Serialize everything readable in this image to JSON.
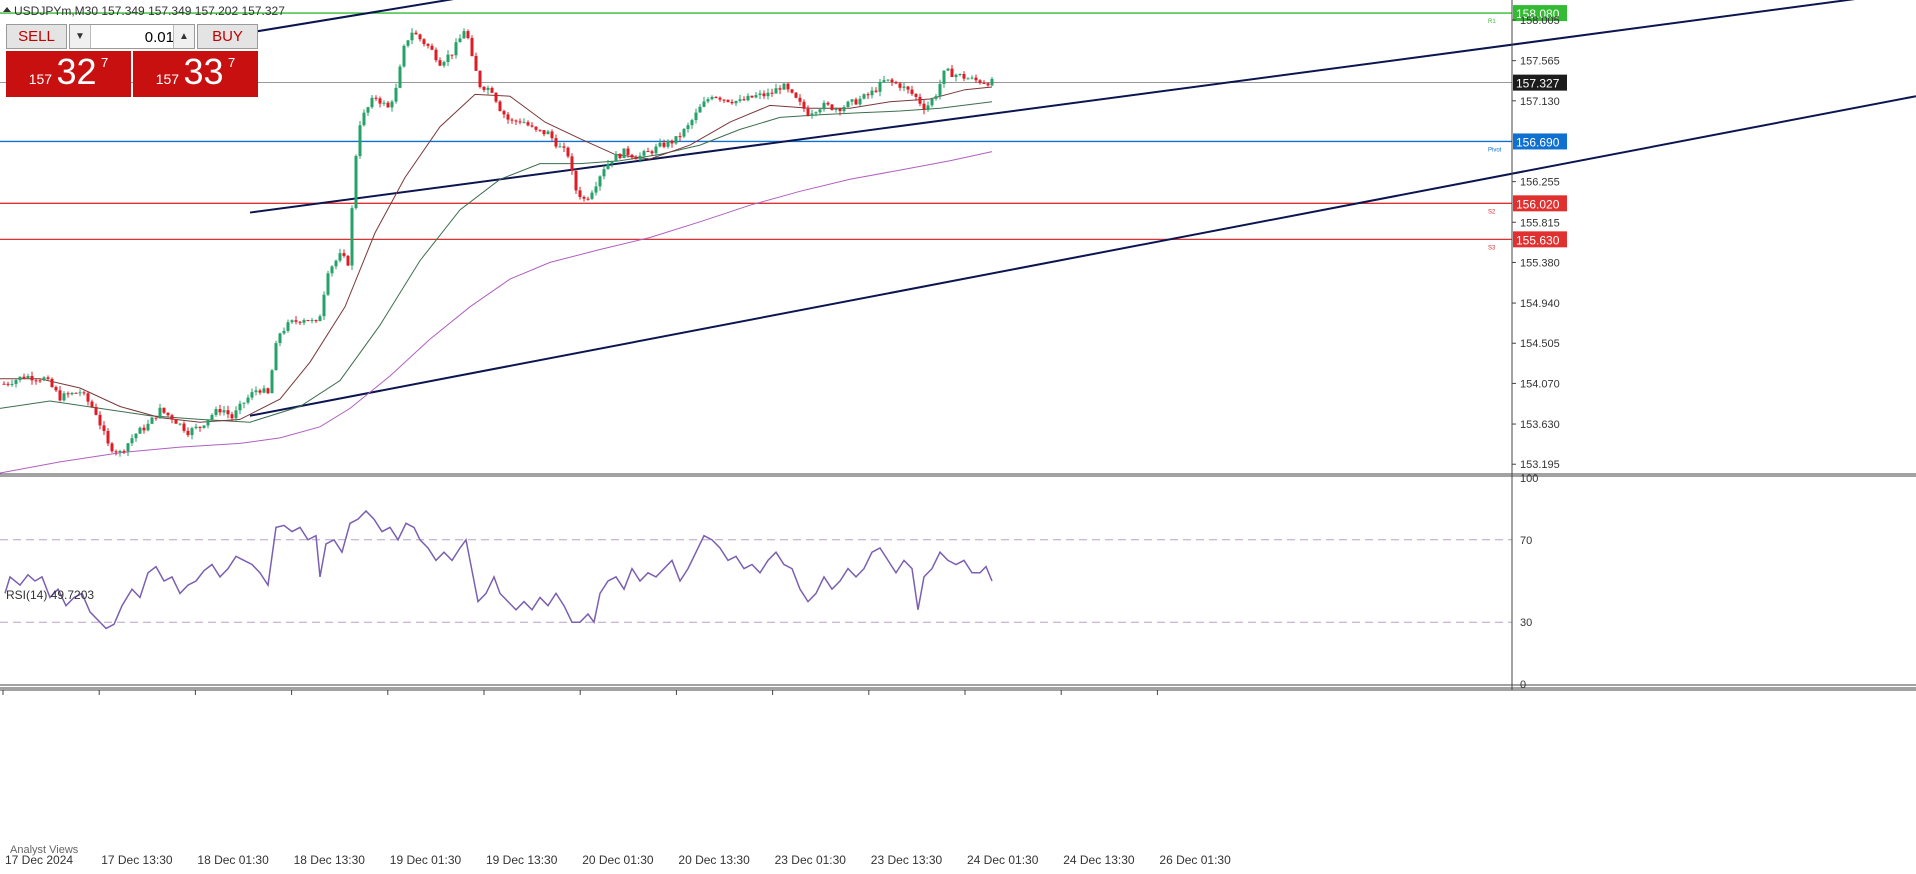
{
  "header": {
    "title": "USDJPYm,M30  157.349 157.349 157.202 157.327",
    "indicator_label": "RSI(14) 49.7203",
    "bottom_tab": "Analyst Views"
  },
  "trade_panel": {
    "sell_label": "SELL",
    "buy_label": "BUY",
    "volume": "0.01",
    "sell_price_prefix": "157",
    "sell_price_main": "32",
    "sell_price_sup": "7",
    "buy_price_prefix": "157",
    "buy_price_main": "33",
    "buy_price_sup": "7"
  },
  "colors": {
    "bull": "#26a269",
    "bear": "#e01b24",
    "resistance": "#33bb33",
    "support": "#e03030",
    "pivot": "#1070d0",
    "channel": "#0b1550",
    "rsi": "#7b5fb0",
    "ma_fast": "#7a3838",
    "ma_mid": "#3c6e4e",
    "ma_slow": "#b060c0"
  },
  "chart_data": [
    {
      "type": "candlestick",
      "symbol": "USDJPYm",
      "timeframe": "M30",
      "ylim": [
        153.1,
        158.2
      ],
      "price_ticks": [
        "158.005",
        "157.565",
        "157.130",
        "156.255",
        "155.815",
        "155.380",
        "154.940",
        "154.505",
        "154.070",
        "153.630",
        "153.195"
      ],
      "time_labels": [
        "17 Dec 2024",
        "17 Dec 13:30",
        "18 Dec 01:30",
        "18 Dec 13:30",
        "19 Dec 01:30",
        "19 Dec 13:30",
        "20 Dec 01:30",
        "20 Dec 13:30",
        "23 Dec 01:30",
        "23 Dec 13:30",
        "24 Dec 01:30",
        "24 Dec 13:30",
        "26 Dec 01:30"
      ],
      "current_price": "157.327",
      "levels": [
        {
          "name": "R1",
          "label": "R1",
          "value": "158.080",
          "role": "resistance"
        },
        {
          "name": "Pivot",
          "label": "Pivot",
          "value": "156.690",
          "role": "pivot"
        },
        {
          "name": "S2",
          "label": "S2",
          "value": "156.020",
          "role": "support"
        },
        {
          "name": "S3",
          "label": "S3",
          "value": "155.630",
          "role": "support"
        }
      ],
      "trend_channel": {
        "lower": [
          [
            250,
            153.72
          ],
          [
            1916,
            157.18
          ]
        ],
        "upper_mid": [
          [
            250,
            155.92
          ],
          [
            1916,
            158.32
          ]
        ],
        "upper_top": [
          [
            250,
            157.87
          ],
          [
            520,
            158.35
          ]
        ]
      },
      "close_path": [
        [
          0,
          154.05
        ],
        [
          25,
          154.15
        ],
        [
          45,
          154.12
        ],
        [
          60,
          153.92
        ],
        [
          80,
          153.98
        ],
        [
          95,
          153.78
        ],
        [
          108,
          153.4
        ],
        [
          120,
          153.32
        ],
        [
          135,
          153.52
        ],
        [
          148,
          153.62
        ],
        [
          160,
          153.78
        ],
        [
          172,
          153.7
        ],
        [
          188,
          153.55
        ],
        [
          200,
          153.6
        ],
        [
          210,
          153.72
        ],
        [
          222,
          153.8
        ],
        [
          232,
          153.7
        ],
        [
          245,
          153.88
        ],
        [
          258,
          154.02
        ],
        [
          268,
          153.95
        ],
        [
          278,
          154.6
        ],
        [
          290,
          154.72
        ],
        [
          305,
          154.78
        ],
        [
          318,
          154.7
        ],
        [
          328,
          155.3
        ],
        [
          340,
          155.45
        ],
        [
          348,
          155.38
        ],
        [
          352,
          155.95
        ],
        [
          358,
          156.85
        ],
        [
          365,
          157.0
        ],
        [
          375,
          157.18
        ],
        [
          388,
          157.05
        ],
        [
          396,
          157.25
        ],
        [
          405,
          157.75
        ],
        [
          412,
          157.88
        ],
        [
          420,
          157.8
        ],
        [
          430,
          157.7
        ],
        [
          440,
          157.55
        ],
        [
          452,
          157.65
        ],
        [
          460,
          157.8
        ],
        [
          466,
          157.95
        ],
        [
          470,
          157.65
        ],
        [
          480,
          157.3
        ],
        [
          492,
          157.25
        ],
        [
          500,
          157.05
        ],
        [
          510,
          156.9
        ],
        [
          522,
          156.92
        ],
        [
          535,
          156.8
        ],
        [
          548,
          156.78
        ],
        [
          560,
          156.62
        ],
        [
          568,
          156.55
        ],
        [
          575,
          156.18
        ],
        [
          585,
          156.05
        ],
        [
          595,
          156.22
        ],
        [
          603,
          156.4
        ],
        [
          612,
          156.5
        ],
        [
          625,
          156.58
        ],
        [
          638,
          156.52
        ],
        [
          650,
          156.58
        ],
        [
          662,
          156.65
        ],
        [
          675,
          156.7
        ],
        [
          688,
          156.85
        ],
        [
          700,
          157.05
        ],
        [
          712,
          157.2
        ],
        [
          725,
          157.15
        ],
        [
          740,
          157.12
        ],
        [
          755,
          157.18
        ],
        [
          770,
          157.2
        ],
        [
          782,
          157.3
        ],
        [
          795,
          157.15
        ],
        [
          808,
          157.0
        ],
        [
          822,
          157.08
        ],
        [
          838,
          157.05
        ],
        [
          855,
          157.12
        ],
        [
          870,
          157.2
        ],
        [
          885,
          157.35
        ],
        [
          900,
          157.3
        ],
        [
          915,
          157.18
        ],
        [
          925,
          157.05
        ],
        [
          935,
          157.18
        ],
        [
          945,
          157.45
        ],
        [
          960,
          157.4
        ],
        [
          975,
          157.35
        ],
        [
          992,
          157.33
        ]
      ],
      "ma_fast_path": [
        [
          0,
          154.12
        ],
        [
          40,
          154.12
        ],
        [
          80,
          154.02
        ],
        [
          120,
          153.82
        ],
        [
          160,
          153.7
        ],
        [
          200,
          153.65
        ],
        [
          240,
          153.68
        ],
        [
          280,
          153.9
        ],
        [
          310,
          154.3
        ],
        [
          345,
          154.9
        ],
        [
          375,
          155.7
        ],
        [
          405,
          156.3
        ],
        [
          440,
          156.85
        ],
        [
          475,
          157.2
        ],
        [
          510,
          157.18
        ],
        [
          545,
          156.9
        ],
        [
          580,
          156.72
        ],
        [
          615,
          156.55
        ],
        [
          650,
          156.5
        ],
        [
          690,
          156.65
        ],
        [
          730,
          156.9
        ],
        [
          770,
          157.08
        ],
        [
          810,
          157.05
        ],
        [
          850,
          157.05
        ],
        [
          890,
          157.12
        ],
        [
          930,
          157.15
        ],
        [
          965,
          157.25
        ],
        [
          992,
          157.28
        ]
      ],
      "ma_mid_path": [
        [
          0,
          153.8
        ],
        [
          50,
          153.88
        ],
        [
          100,
          153.8
        ],
        [
          150,
          153.72
        ],
        [
          200,
          153.68
        ],
        [
          250,
          153.65
        ],
        [
          300,
          153.82
        ],
        [
          340,
          154.1
        ],
        [
          380,
          154.7
        ],
        [
          420,
          155.4
        ],
        [
          460,
          155.95
        ],
        [
          500,
          156.28
        ],
        [
          540,
          156.45
        ],
        [
          580,
          156.45
        ],
        [
          620,
          156.48
        ],
        [
          660,
          156.55
        ],
        [
          700,
          156.65
        ],
        [
          740,
          156.82
        ],
        [
          780,
          156.95
        ],
        [
          820,
          156.98
        ],
        [
          860,
          157.0
        ],
        [
          900,
          157.02
        ],
        [
          940,
          157.05
        ],
        [
          992,
          157.12
        ]
      ],
      "ma_slow_path": [
        [
          0,
          153.1
        ],
        [
          60,
          153.22
        ],
        [
          120,
          153.32
        ],
        [
          180,
          153.38
        ],
        [
          240,
          153.42
        ],
        [
          280,
          153.48
        ],
        [
          320,
          153.6
        ],
        [
          350,
          153.8
        ],
        [
          390,
          154.15
        ],
        [
          430,
          154.55
        ],
        [
          470,
          154.9
        ],
        [
          510,
          155.2
        ],
        [
          550,
          155.38
        ],
        [
          600,
          155.52
        ],
        [
          650,
          155.65
        ],
        [
          700,
          155.82
        ],
        [
          750,
          156.0
        ],
        [
          800,
          156.15
        ],
        [
          850,
          156.28
        ],
        [
          900,
          156.38
        ],
        [
          950,
          156.48
        ],
        [
          992,
          156.58
        ]
      ]
    },
    {
      "type": "line",
      "name": "RSI(14)",
      "ylim": [
        0,
        100
      ],
      "y_ticks": [
        "100",
        "70",
        "30",
        "0"
      ],
      "levels": [
        70,
        30
      ],
      "points": [
        [
          5,
          44
        ],
        [
          10,
          52
        ],
        [
          20,
          48
        ],
        [
          28,
          53
        ],
        [
          35,
          50
        ],
        [
          42,
          52
        ],
        [
          50,
          42
        ],
        [
          58,
          46
        ],
        [
          66,
          38
        ],
        [
          74,
          42
        ],
        [
          82,
          44
        ],
        [
          90,
          35
        ],
        [
          98,
          31
        ],
        [
          106,
          27
        ],
        [
          114,
          29
        ],
        [
          122,
          38
        ],
        [
          132,
          46
        ],
        [
          140,
          42
        ],
        [
          148,
          54
        ],
        [
          156,
          57
        ],
        [
          164,
          50
        ],
        [
          172,
          52
        ],
        [
          180,
          44
        ],
        [
          188,
          48
        ],
        [
          196,
          50
        ],
        [
          204,
          55
        ],
        [
          212,
          58
        ],
        [
          220,
          52
        ],
        [
          228,
          56
        ],
        [
          236,
          62
        ],
        [
          244,
          60
        ],
        [
          252,
          58
        ],
        [
          260,
          54
        ],
        [
          268,
          48
        ],
        [
          276,
          76
        ],
        [
          284,
          77
        ],
        [
          292,
          74
        ],
        [
          300,
          76
        ],
        [
          308,
          70
        ],
        [
          316,
          72
        ],
        [
          320,
          52
        ],
        [
          326,
          68
        ],
        [
          334,
          70
        ],
        [
          342,
          64
        ],
        [
          350,
          78
        ],
        [
          358,
          80
        ],
        [
          366,
          84
        ],
        [
          374,
          80
        ],
        [
          382,
          74
        ],
        [
          390,
          76
        ],
        [
          398,
          70
        ],
        [
          406,
          78
        ],
        [
          414,
          76
        ],
        [
          420,
          70
        ],
        [
          428,
          66
        ],
        [
          436,
          60
        ],
        [
          444,
          64
        ],
        [
          452,
          60
        ],
        [
          460,
          66
        ],
        [
          466,
          70
        ],
        [
          470,
          60
        ],
        [
          478,
          40
        ],
        [
          486,
          44
        ],
        [
          494,
          52
        ],
        [
          500,
          44
        ],
        [
          508,
          40
        ],
        [
          516,
          36
        ],
        [
          524,
          40
        ],
        [
          532,
          36
        ],
        [
          540,
          42
        ],
        [
          548,
          38
        ],
        [
          556,
          44
        ],
        [
          564,
          38
        ],
        [
          572,
          30
        ],
        [
          580,
          30
        ],
        [
          588,
          34
        ],
        [
          594,
          30
        ],
        [
          600,
          44
        ],
        [
          608,
          50
        ],
        [
          616,
          52
        ],
        [
          624,
          46
        ],
        [
          632,
          56
        ],
        [
          640,
          50
        ],
        [
          648,
          54
        ],
        [
          656,
          52
        ],
        [
          664,
          56
        ],
        [
          672,
          60
        ],
        [
          680,
          50
        ],
        [
          688,
          56
        ],
        [
          696,
          64
        ],
        [
          704,
          72
        ],
        [
          712,
          70
        ],
        [
          720,
          66
        ],
        [
          728,
          60
        ],
        [
          736,
          62
        ],
        [
          744,
          56
        ],
        [
          752,
          58
        ],
        [
          760,
          54
        ],
        [
          768,
          60
        ],
        [
          776,
          64
        ],
        [
          784,
          58
        ],
        [
          792,
          56
        ],
        [
          800,
          46
        ],
        [
          808,
          40
        ],
        [
          816,
          44
        ],
        [
          824,
          52
        ],
        [
          832,
          46
        ],
        [
          840,
          50
        ],
        [
          848,
          56
        ],
        [
          856,
          52
        ],
        [
          864,
          56
        ],
        [
          872,
          64
        ],
        [
          880,
          66
        ],
        [
          888,
          60
        ],
        [
          896,
          54
        ],
        [
          904,
          60
        ],
        [
          912,
          56
        ],
        [
          918,
          36
        ],
        [
          924,
          52
        ],
        [
          932,
          56
        ],
        [
          940,
          64
        ],
        [
          948,
          60
        ],
        [
          956,
          58
        ],
        [
          964,
          60
        ],
        [
          972,
          54
        ],
        [
          980,
          54
        ],
        [
          986,
          57
        ],
        [
          992,
          50
        ]
      ]
    }
  ]
}
